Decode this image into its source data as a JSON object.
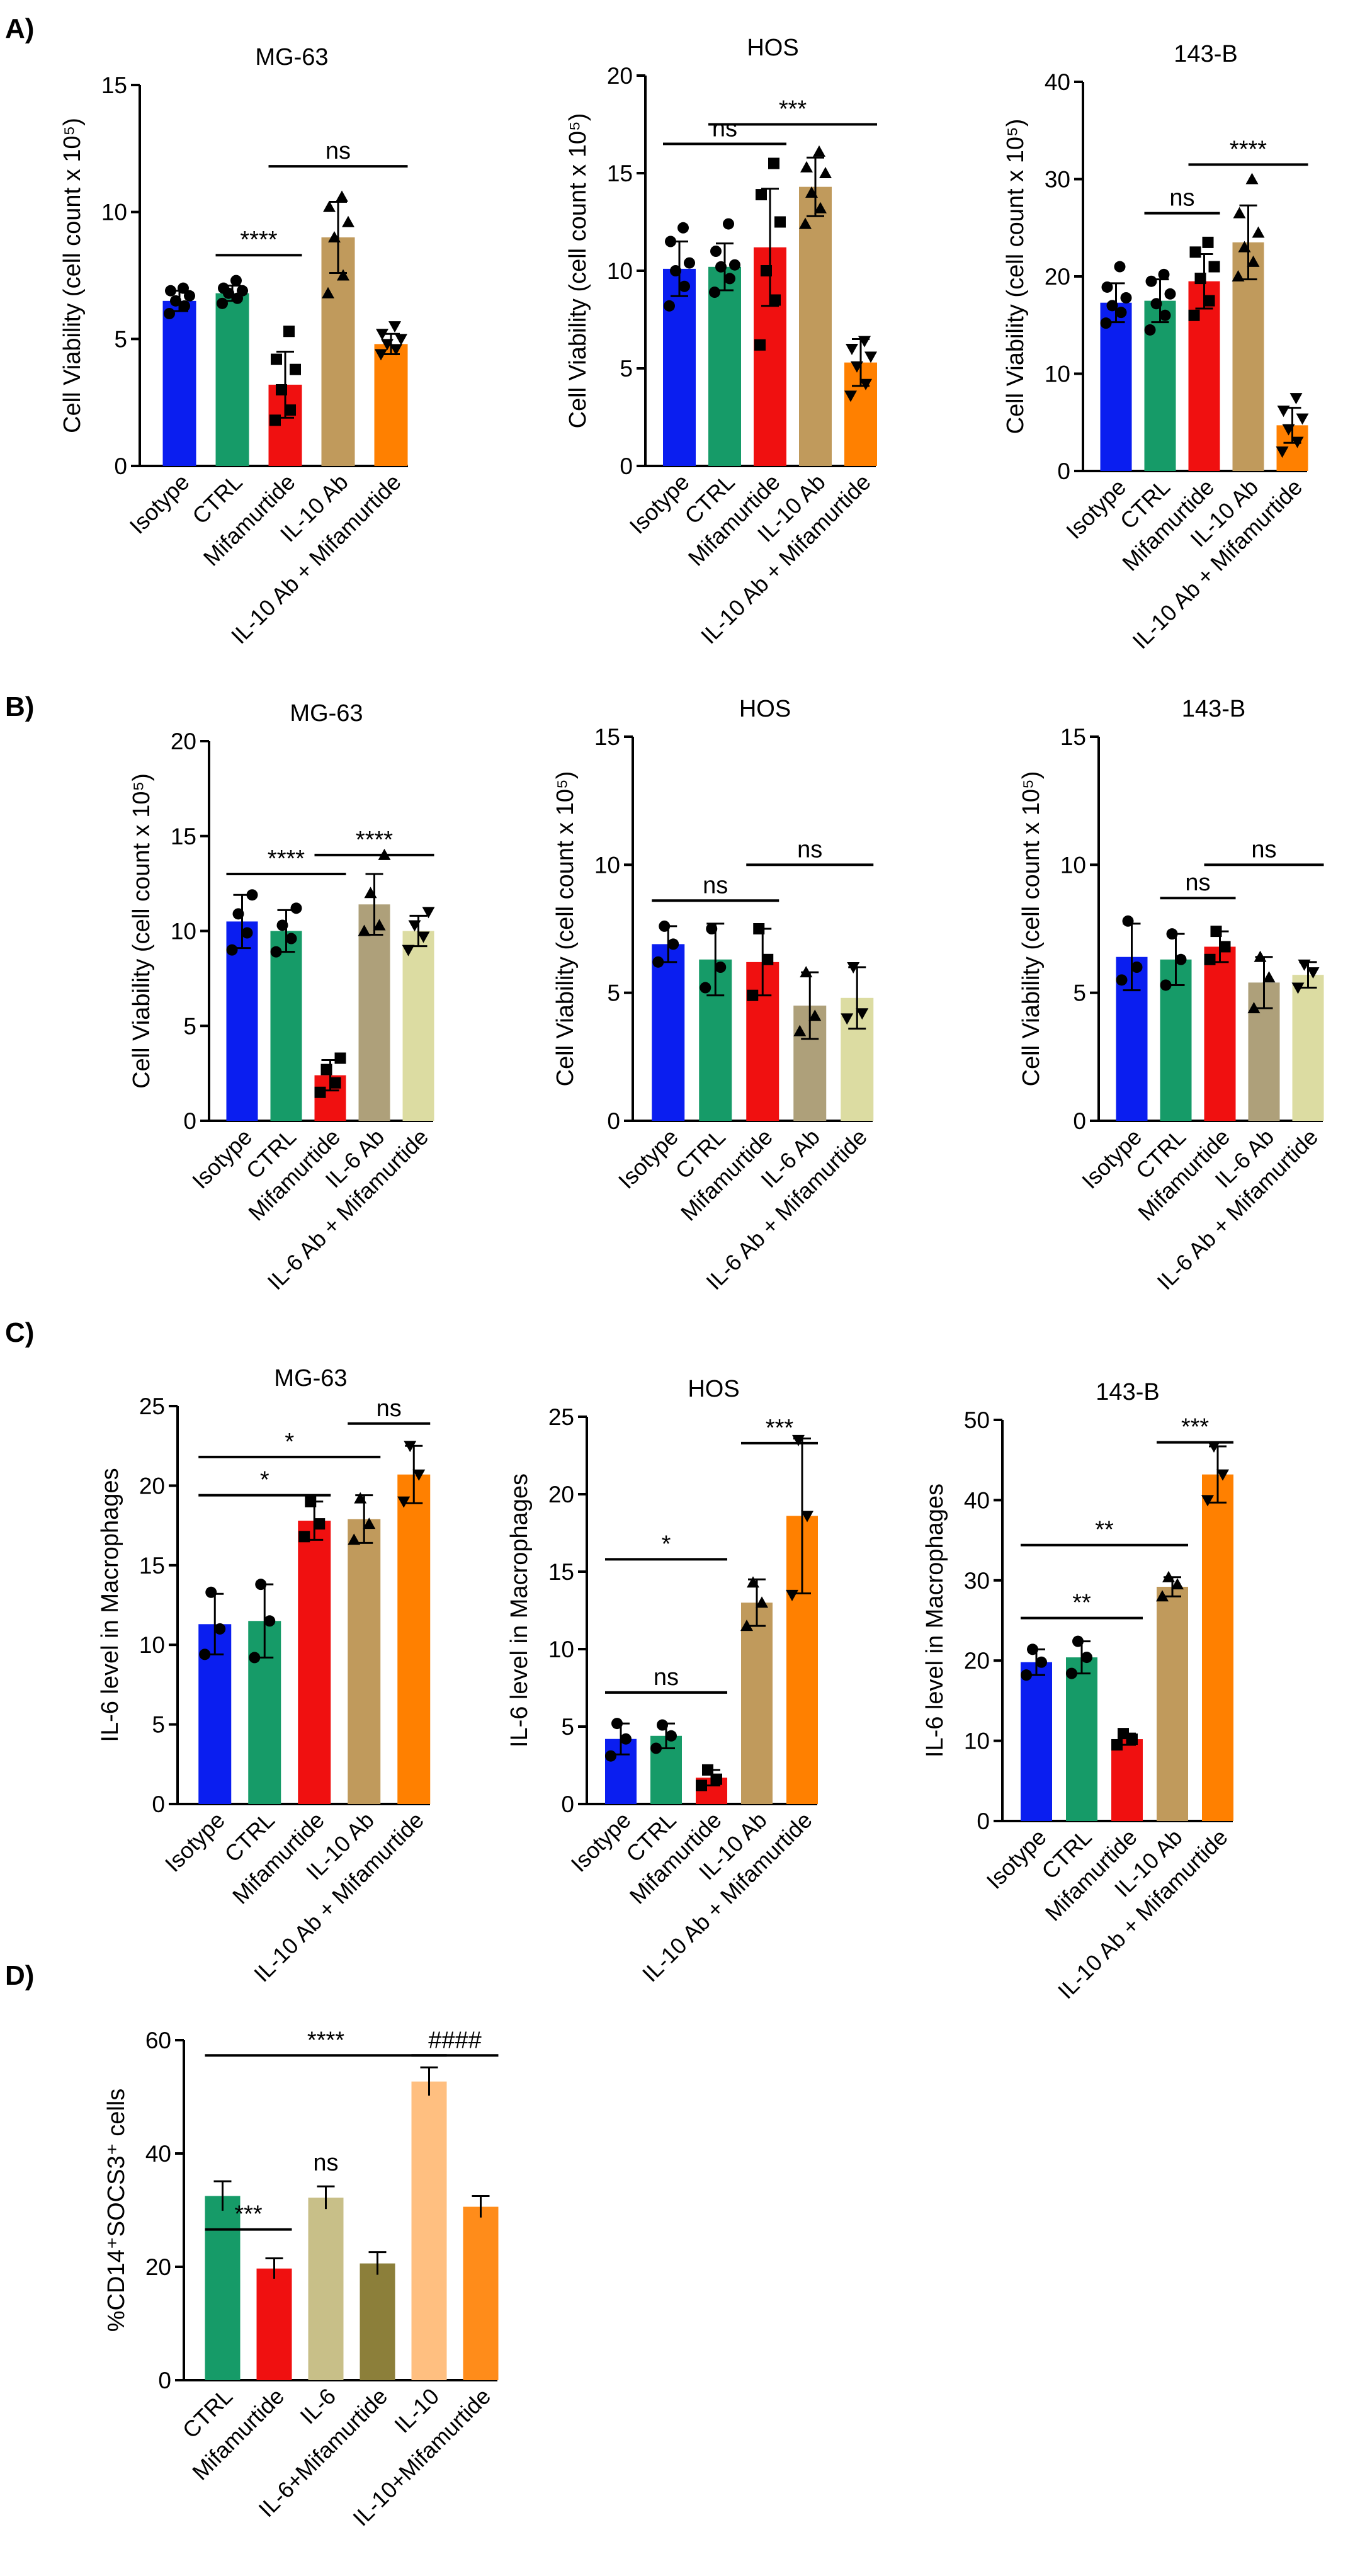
{
  "panel_labels": [
    "A)",
    "B)",
    "C)",
    "D)"
  ],
  "colors": {
    "isotype": "#0a1ef0",
    "ctrl": "#169b68",
    "mifamurtide": "#f01010",
    "il10ab": "#c09a5c",
    "combo_orange": "#ff8000",
    "il6ab": "#aea07a",
    "il6ab_mif": "#dcdca2",
    "d_il6": "#c8bf88",
    "d_il6mif": "#8c7f3a",
    "d_il10": "#ffbf80",
    "d_il10mif": "#ff8c1a"
  },
  "chart_data": [
    {
      "id": "A-MG-63",
      "panel": "A)",
      "type": "bar",
      "title": "MG-63",
      "ylabel": "Cell Viability (cell count x 10⁵)",
      "ylim": [
        0,
        15
      ],
      "yticks": [
        0,
        5,
        10,
        15
      ],
      "categories": [
        "Isotype",
        "CTRL",
        "Mifamurtide",
        "IL-10 Ab",
        "IL-10 Ab + Mifamurtide"
      ],
      "values": [
        6.5,
        6.8,
        3.2,
        9.0,
        4.8
      ],
      "errors": [
        0.4,
        0.3,
        1.3,
        1.4,
        0.4
      ],
      "points": [
        [
          6.0,
          6.3,
          6.5,
          6.7,
          6.9,
          7.0
        ],
        [
          6.4,
          6.6,
          6.8,
          6.9,
          7.0,
          7.3
        ],
        [
          1.8,
          2.2,
          3.0,
          3.8,
          4.2,
          5.3
        ],
        [
          6.8,
          7.5,
          9.0,
          9.6,
          10.2,
          10.6
        ],
        [
          4.4,
          4.6,
          4.8,
          5.0,
          5.2,
          5.5
        ]
      ],
      "markers": [
        "circle",
        "circle",
        "square",
        "triangle",
        "triangle-down"
      ],
      "bar_colors": [
        "#0a1ef0",
        "#169b68",
        "#f01010",
        "#c09a5c",
        "#ff8000"
      ],
      "significance": [
        {
          "from": 1,
          "to": 2,
          "y": 8.3,
          "label": "****"
        },
        {
          "from": 2,
          "to": 4,
          "y": 11.8,
          "label": "ns"
        }
      ]
    },
    {
      "id": "A-HOS",
      "panel": "A)",
      "type": "bar",
      "title": "HOS",
      "ylabel": "Cell Viability (cell count x 10⁵)",
      "ylim": [
        0,
        20
      ],
      "yticks": [
        0,
        5,
        10,
        15,
        20
      ],
      "categories": [
        "Isotype",
        "CTRL",
        "Mifamurtide",
        "IL-10 Ab",
        "IL-10 Ab + Mifamurtide"
      ],
      "values": [
        10.1,
        10.2,
        11.2,
        14.3,
        5.3
      ],
      "errors": [
        1.4,
        1.2,
        3.0,
        1.5,
        1.2
      ],
      "points": [
        [
          8.2,
          9.2,
          10.0,
          10.4,
          11.5,
          12.2
        ],
        [
          8.9,
          9.6,
          10.2,
          10.3,
          11.0,
          12.4
        ],
        [
          6.2,
          8.5,
          10.0,
          12.5,
          13.9,
          15.5
        ],
        [
          12.4,
          13.2,
          14.0,
          15.0,
          15.3,
          16.1
        ],
        [
          3.6,
          4.2,
          5.1,
          5.6,
          6.0,
          6.4
        ]
      ],
      "markers": [
        "circle",
        "circle",
        "square",
        "triangle",
        "triangle-down"
      ],
      "bar_colors": [
        "#0a1ef0",
        "#169b68",
        "#f01010",
        "#c09a5c",
        "#ff8000"
      ],
      "significance": [
        {
          "from": 0,
          "to": 2,
          "y": 16.5,
          "label": "ns"
        },
        {
          "from": 1,
          "to": 4,
          "y": 17.5,
          "label": "***"
        }
      ]
    },
    {
      "id": "A-143-B",
      "panel": "A)",
      "type": "bar",
      "title": "143-B",
      "ylabel": "Cell Viability (cell count x 10⁵)",
      "ylim": [
        0,
        40
      ],
      "yticks": [
        0,
        10,
        20,
        30,
        40
      ],
      "categories": [
        "Isotype",
        "CTRL",
        "Mifamurtide",
        "IL-10 Ab",
        "IL-10 Ab + Mifamurtide"
      ],
      "values": [
        17.3,
        17.5,
        19.5,
        23.5,
        4.7
      ],
      "errors": [
        2.0,
        2.2,
        2.8,
        3.8,
        1.8
      ],
      "points": [
        [
          15.2,
          16.3,
          17.0,
          17.8,
          18.9,
          21.0
        ],
        [
          14.5,
          16.0,
          17.2,
          18.2,
          19.5,
          20.2
        ],
        [
          16.0,
          17.5,
          19.8,
          21.0,
          22.5,
          23.5
        ],
        [
          20.0,
          21.5,
          23.0,
          24.5,
          26.5,
          30.0
        ],
        [
          2.0,
          3.0,
          4.3,
          5.4,
          6.2,
          7.5
        ]
      ],
      "markers": [
        "circle",
        "circle",
        "square",
        "triangle",
        "triangle-down"
      ],
      "bar_colors": [
        "#0a1ef0",
        "#169b68",
        "#f01010",
        "#c09a5c",
        "#ff8000"
      ],
      "significance": [
        {
          "from": 1,
          "to": 2,
          "y": 26.5,
          "label": "ns"
        },
        {
          "from": 2,
          "to": 4,
          "y": 31.5,
          "label": "****"
        }
      ]
    },
    {
      "id": "B-MG-63",
      "panel": "B)",
      "type": "bar",
      "title": "MG-63",
      "ylabel": "Cell Viability (cell count x 10⁵)",
      "ylim": [
        0,
        20
      ],
      "yticks": [
        0,
        5,
        10,
        15,
        20
      ],
      "categories": [
        "Isotype",
        "CTRL",
        "Mifamurtide",
        "IL-6 Ab",
        "IL-6 Ab + Mifamurtide"
      ],
      "values": [
        10.5,
        10.0,
        2.4,
        11.4,
        10.0
      ],
      "errors": [
        1.4,
        1.1,
        0.8,
        1.6,
        0.8
      ],
      "points": [
        [
          9.0,
          9.9,
          10.9,
          11.9
        ],
        [
          8.9,
          9.6,
          10.3,
          11.2
        ],
        [
          1.5,
          2.0,
          2.7,
          3.3
        ],
        [
          10.0,
          10.3,
          12.0,
          14.0
        ],
        [
          9.0,
          9.7,
          10.3,
          11.0
        ]
      ],
      "markers": [
        "circle",
        "circle",
        "square",
        "triangle",
        "triangle-down"
      ],
      "bar_colors": [
        "#0a1ef0",
        "#169b68",
        "#f01010",
        "#aea07a",
        "#dcdca2"
      ],
      "significance": [
        {
          "from": 0,
          "to": 2,
          "y": 13.0,
          "label": "****"
        },
        {
          "from": 2,
          "to": 4,
          "y": 14.0,
          "label": "****"
        }
      ]
    },
    {
      "id": "B-HOS",
      "panel": "B)",
      "type": "bar",
      "title": "HOS",
      "ylabel": "Cell Viability (cell count x 10⁵)",
      "ylim": [
        0,
        15
      ],
      "yticks": [
        0,
        5,
        10,
        15
      ],
      "categories": [
        "Isotype",
        "CTRL",
        "Mifamurtide",
        "IL-6 Ab",
        "IL-6 Ab + Mifamurtide"
      ],
      "values": [
        6.9,
        6.3,
        6.2,
        4.5,
        4.8
      ],
      "errors": [
        0.7,
        1.4,
        1.3,
        1.3,
        1.2
      ],
      "points": [
        [
          6.2,
          6.9,
          7.6
        ],
        [
          5.2,
          6.0,
          7.5
        ],
        [
          4.9,
          6.3,
          7.5
        ],
        [
          3.5,
          4.1,
          5.8
        ],
        [
          4.0,
          4.2,
          6.0
        ]
      ],
      "markers": [
        "circle",
        "circle",
        "square",
        "triangle",
        "triangle-down"
      ],
      "bar_colors": [
        "#0a1ef0",
        "#169b68",
        "#f01010",
        "#aea07a",
        "#dcdca2"
      ],
      "significance": [
        {
          "from": 0,
          "to": 2,
          "y": 8.6,
          "label": "ns"
        },
        {
          "from": 2,
          "to": 4,
          "y": 10.0,
          "label": "ns"
        }
      ]
    },
    {
      "id": "B-143-B",
      "panel": "B)",
      "type": "bar",
      "title": "143-B",
      "ylabel": "Cell Viability (cell count x 10⁵)",
      "ylim": [
        0,
        15
      ],
      "yticks": [
        0,
        5,
        10,
        15
      ],
      "categories": [
        "Isotype",
        "CTRL",
        "Mifamurtide",
        "IL-6 Ab",
        "IL-6 Ab + Mifamurtide"
      ],
      "values": [
        6.4,
        6.3,
        6.8,
        5.4,
        5.7
      ],
      "errors": [
        1.3,
        1.0,
        0.6,
        1.0,
        0.5
      ],
      "points": [
        [
          5.5,
          6.0,
          7.8
        ],
        [
          5.3,
          6.3,
          7.3
        ],
        [
          6.3,
          6.8,
          7.4
        ],
        [
          4.4,
          5.6,
          6.4
        ],
        [
          5.2,
          5.8,
          6.1
        ]
      ],
      "markers": [
        "circle",
        "circle",
        "square",
        "triangle",
        "triangle-down"
      ],
      "bar_colors": [
        "#0a1ef0",
        "#169b68",
        "#f01010",
        "#aea07a",
        "#dcdca2"
      ],
      "significance": [
        {
          "from": 1,
          "to": 2,
          "y": 8.7,
          "label": "ns"
        },
        {
          "from": 2,
          "to": 4,
          "y": 10.0,
          "label": "ns"
        }
      ]
    },
    {
      "id": "C-MG-63",
      "panel": "C)",
      "type": "bar",
      "title": "MG-63",
      "ylabel": "IL-6 level in Macrophages",
      "ylim": [
        0,
        25
      ],
      "yticks": [
        0,
        5,
        10,
        15,
        20,
        25
      ],
      "categories": [
        "Isotype",
        "CTRL",
        "Mifamurtide",
        "IL-10 Ab",
        "IL-10 Ab + Mifamurtide"
      ],
      "values": [
        11.3,
        11.5,
        17.8,
        17.9,
        20.7
      ],
      "errors": [
        1.9,
        2.3,
        1.2,
        1.5,
        1.8
      ],
      "points": [
        [
          9.4,
          11.0,
          13.3
        ],
        [
          9.2,
          11.5,
          13.8
        ],
        [
          16.8,
          17.6,
          19.0
        ],
        [
          16.6,
          17.6,
          19.2
        ],
        [
          19.0,
          20.7,
          22.5
        ]
      ],
      "markers": [
        "circle",
        "circle",
        "square",
        "triangle",
        "triangle-down"
      ],
      "bar_colors": [
        "#0a1ef0",
        "#169b68",
        "#f01010",
        "#c09a5c",
        "#ff8000"
      ],
      "significance": [
        {
          "from": 0,
          "to": 2,
          "y": 19.4,
          "label": "*"
        },
        {
          "from": 0,
          "to": 3,
          "y": 21.8,
          "label": "*"
        },
        {
          "from": 3,
          "to": 4,
          "y": 23.9,
          "label": "ns"
        }
      ]
    },
    {
      "id": "C-HOS",
      "panel": "C)",
      "type": "bar",
      "title": "HOS",
      "ylabel": "IL-6 level in Macrophages",
      "ylim": [
        0,
        25
      ],
      "yticks": [
        0,
        5,
        10,
        15,
        20,
        25
      ],
      "categories": [
        "Isotype",
        "CTRL",
        "Mifamurtide",
        "IL-10 Ab",
        "IL-10 Ab + Mifamurtide"
      ],
      "values": [
        4.2,
        4.4,
        1.7,
        13.0,
        18.6
      ],
      "errors": [
        1.0,
        0.8,
        0.5,
        1.5,
        5.0
      ],
      "points": [
        [
          3.1,
          4.2,
          5.2
        ],
        [
          3.6,
          4.4,
          5.1
        ],
        [
          1.2,
          1.6,
          2.2
        ],
        [
          11.5,
          13.0,
          14.3
        ],
        [
          13.5,
          18.6,
          23.5
        ]
      ],
      "markers": [
        "circle",
        "circle",
        "square",
        "triangle",
        "triangle-down"
      ],
      "bar_colors": [
        "#0a1ef0",
        "#169b68",
        "#f01010",
        "#c09a5c",
        "#ff8000"
      ],
      "significance": [
        {
          "from": 0,
          "to": 2,
          "y": 7.2,
          "label": "ns"
        },
        {
          "from": 0,
          "to": 2,
          "y": 15.8,
          "label": "*"
        },
        {
          "from": 3,
          "to": 4,
          "y": 23.3,
          "label": "***"
        }
      ]
    },
    {
      "id": "C-143-B",
      "panel": "C)",
      "type": "bar",
      "title": "143-B",
      "ylabel": "IL-6 level in Macrophages",
      "ylim": [
        0,
        50
      ],
      "yticks": [
        0,
        10,
        20,
        30,
        40,
        50
      ],
      "categories": [
        "Isotype",
        "CTRL",
        "Mifamurtide",
        "IL-10 Ab",
        "IL-10 Ab + Mifamurtide"
      ],
      "values": [
        19.8,
        20.4,
        10.2,
        29.2,
        43.2
      ],
      "errors": [
        1.6,
        2.0,
        0.7,
        1.2,
        3.5
      ],
      "points": [
        [
          18.2,
          19.8,
          21.4
        ],
        [
          18.4,
          20.4,
          22.4
        ],
        [
          9.5,
          10.2,
          10.9
        ],
        [
          28.0,
          29.5,
          30.4
        ],
        [
          40.0,
          43.2,
          46.7
        ]
      ],
      "markers": [
        "circle",
        "circle",
        "square",
        "triangle",
        "triangle-down"
      ],
      "bar_colors": [
        "#0a1ef0",
        "#169b68",
        "#f01010",
        "#c09a5c",
        "#ff8000"
      ],
      "significance": [
        {
          "from": 0,
          "to": 2,
          "y": 25.3,
          "label": "**"
        },
        {
          "from": 0,
          "to": 3,
          "y": 34.4,
          "label": "**"
        },
        {
          "from": 3,
          "to": 4,
          "y": 47.2,
          "label": "***"
        }
      ]
    },
    {
      "id": "D-SOCS3",
      "panel": "D)",
      "type": "bar",
      "title": "",
      "ylabel": "%CD14⁺SOCS3⁺ cells",
      "ylim": [
        0,
        60
      ],
      "yticks": [
        0,
        20,
        40,
        60
      ],
      "categories": [
        "CTRL",
        "Mifamurtide",
        "IL-6",
        "IL-6+Mifamurtide",
        "IL-10",
        "IL-10+Mifamurtide"
      ],
      "values": [
        32.5,
        19.7,
        32.2,
        20.6,
        52.7,
        30.6
      ],
      "errors": [
        2.6,
        1.8,
        2.0,
        2.0,
        2.5,
        1.9
      ],
      "points": [],
      "markers": [],
      "bar_colors": [
        "#169b68",
        "#f01010",
        "#c8bf88",
        "#8c7f3a",
        "#ffbf80",
        "#ff8c1a"
      ],
      "significance": [
        {
          "from": 0,
          "to": 1,
          "y": 26.6,
          "label": "***"
        },
        {
          "from": 0,
          "to": 4,
          "y": 57.3,
          "label": "****"
        },
        {
          "from": 4,
          "to": 5,
          "y": 57.3,
          "label": "####"
        }
      ],
      "annotations": [
        {
          "at": 2,
          "y": 37.0,
          "label": "ns"
        }
      ]
    }
  ]
}
